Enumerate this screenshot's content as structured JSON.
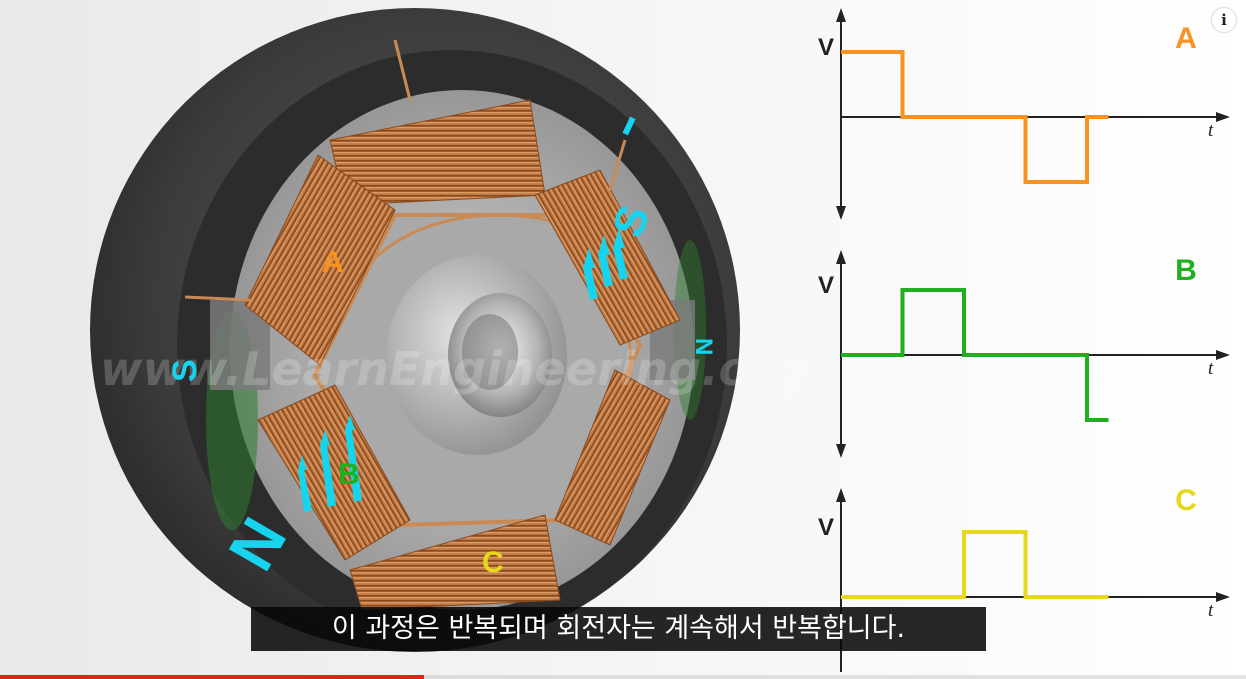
{
  "subtitle": "이 과정은 반복되며 회전자는 계속해서 반복합니다.",
  "info_glyph": "i",
  "watermark": "www.LearnEngineering.org",
  "progress": {
    "fraction": 0.34,
    "color": "#e62117"
  },
  "diagram": {
    "coil_labels": {
      "a": "A",
      "b": "B",
      "c": "C"
    },
    "pole_labels": {
      "s_left": "S",
      "n_right": "N",
      "s_coil": "S",
      "n_coil": "N"
    },
    "colors": {
      "a": "#f7931e",
      "b": "#1faf1f",
      "c": "#e6d81a",
      "pole": "#17d4ee"
    }
  },
  "chart_data": [
    {
      "type": "line",
      "title": "A",
      "color": "#f7931e",
      "ylabel": "V",
      "xlabel": "t",
      "x": [
        0,
        1,
        1,
        3,
        3,
        4,
        4,
        4.35
      ],
      "y": [
        1,
        1,
        0,
        0,
        -1,
        -1,
        0,
        0
      ],
      "ylim": [
        -1.5,
        1.5
      ],
      "xlim": [
        0,
        6
      ]
    },
    {
      "type": "line",
      "title": "B",
      "color": "#1faf1f",
      "ylabel": "V",
      "xlabel": "t",
      "x": [
        0,
        1,
        1,
        2,
        2,
        4,
        4,
        4.35
      ],
      "y": [
        0,
        0,
        1,
        1,
        0,
        0,
        -1,
        -1
      ],
      "ylim": [
        -1.5,
        1.5
      ],
      "xlim": [
        0,
        6
      ]
    },
    {
      "type": "line",
      "title": "C",
      "color": "#e6d81a",
      "ylabel": "V",
      "xlabel": "t",
      "x": [
        0,
        2,
        2,
        3,
        3,
        4.35
      ],
      "y": [
        0,
        0,
        1,
        1,
        0,
        0
      ],
      "ylim": [
        -1.5,
        1.5
      ],
      "xlim": [
        0,
        6
      ]
    }
  ]
}
